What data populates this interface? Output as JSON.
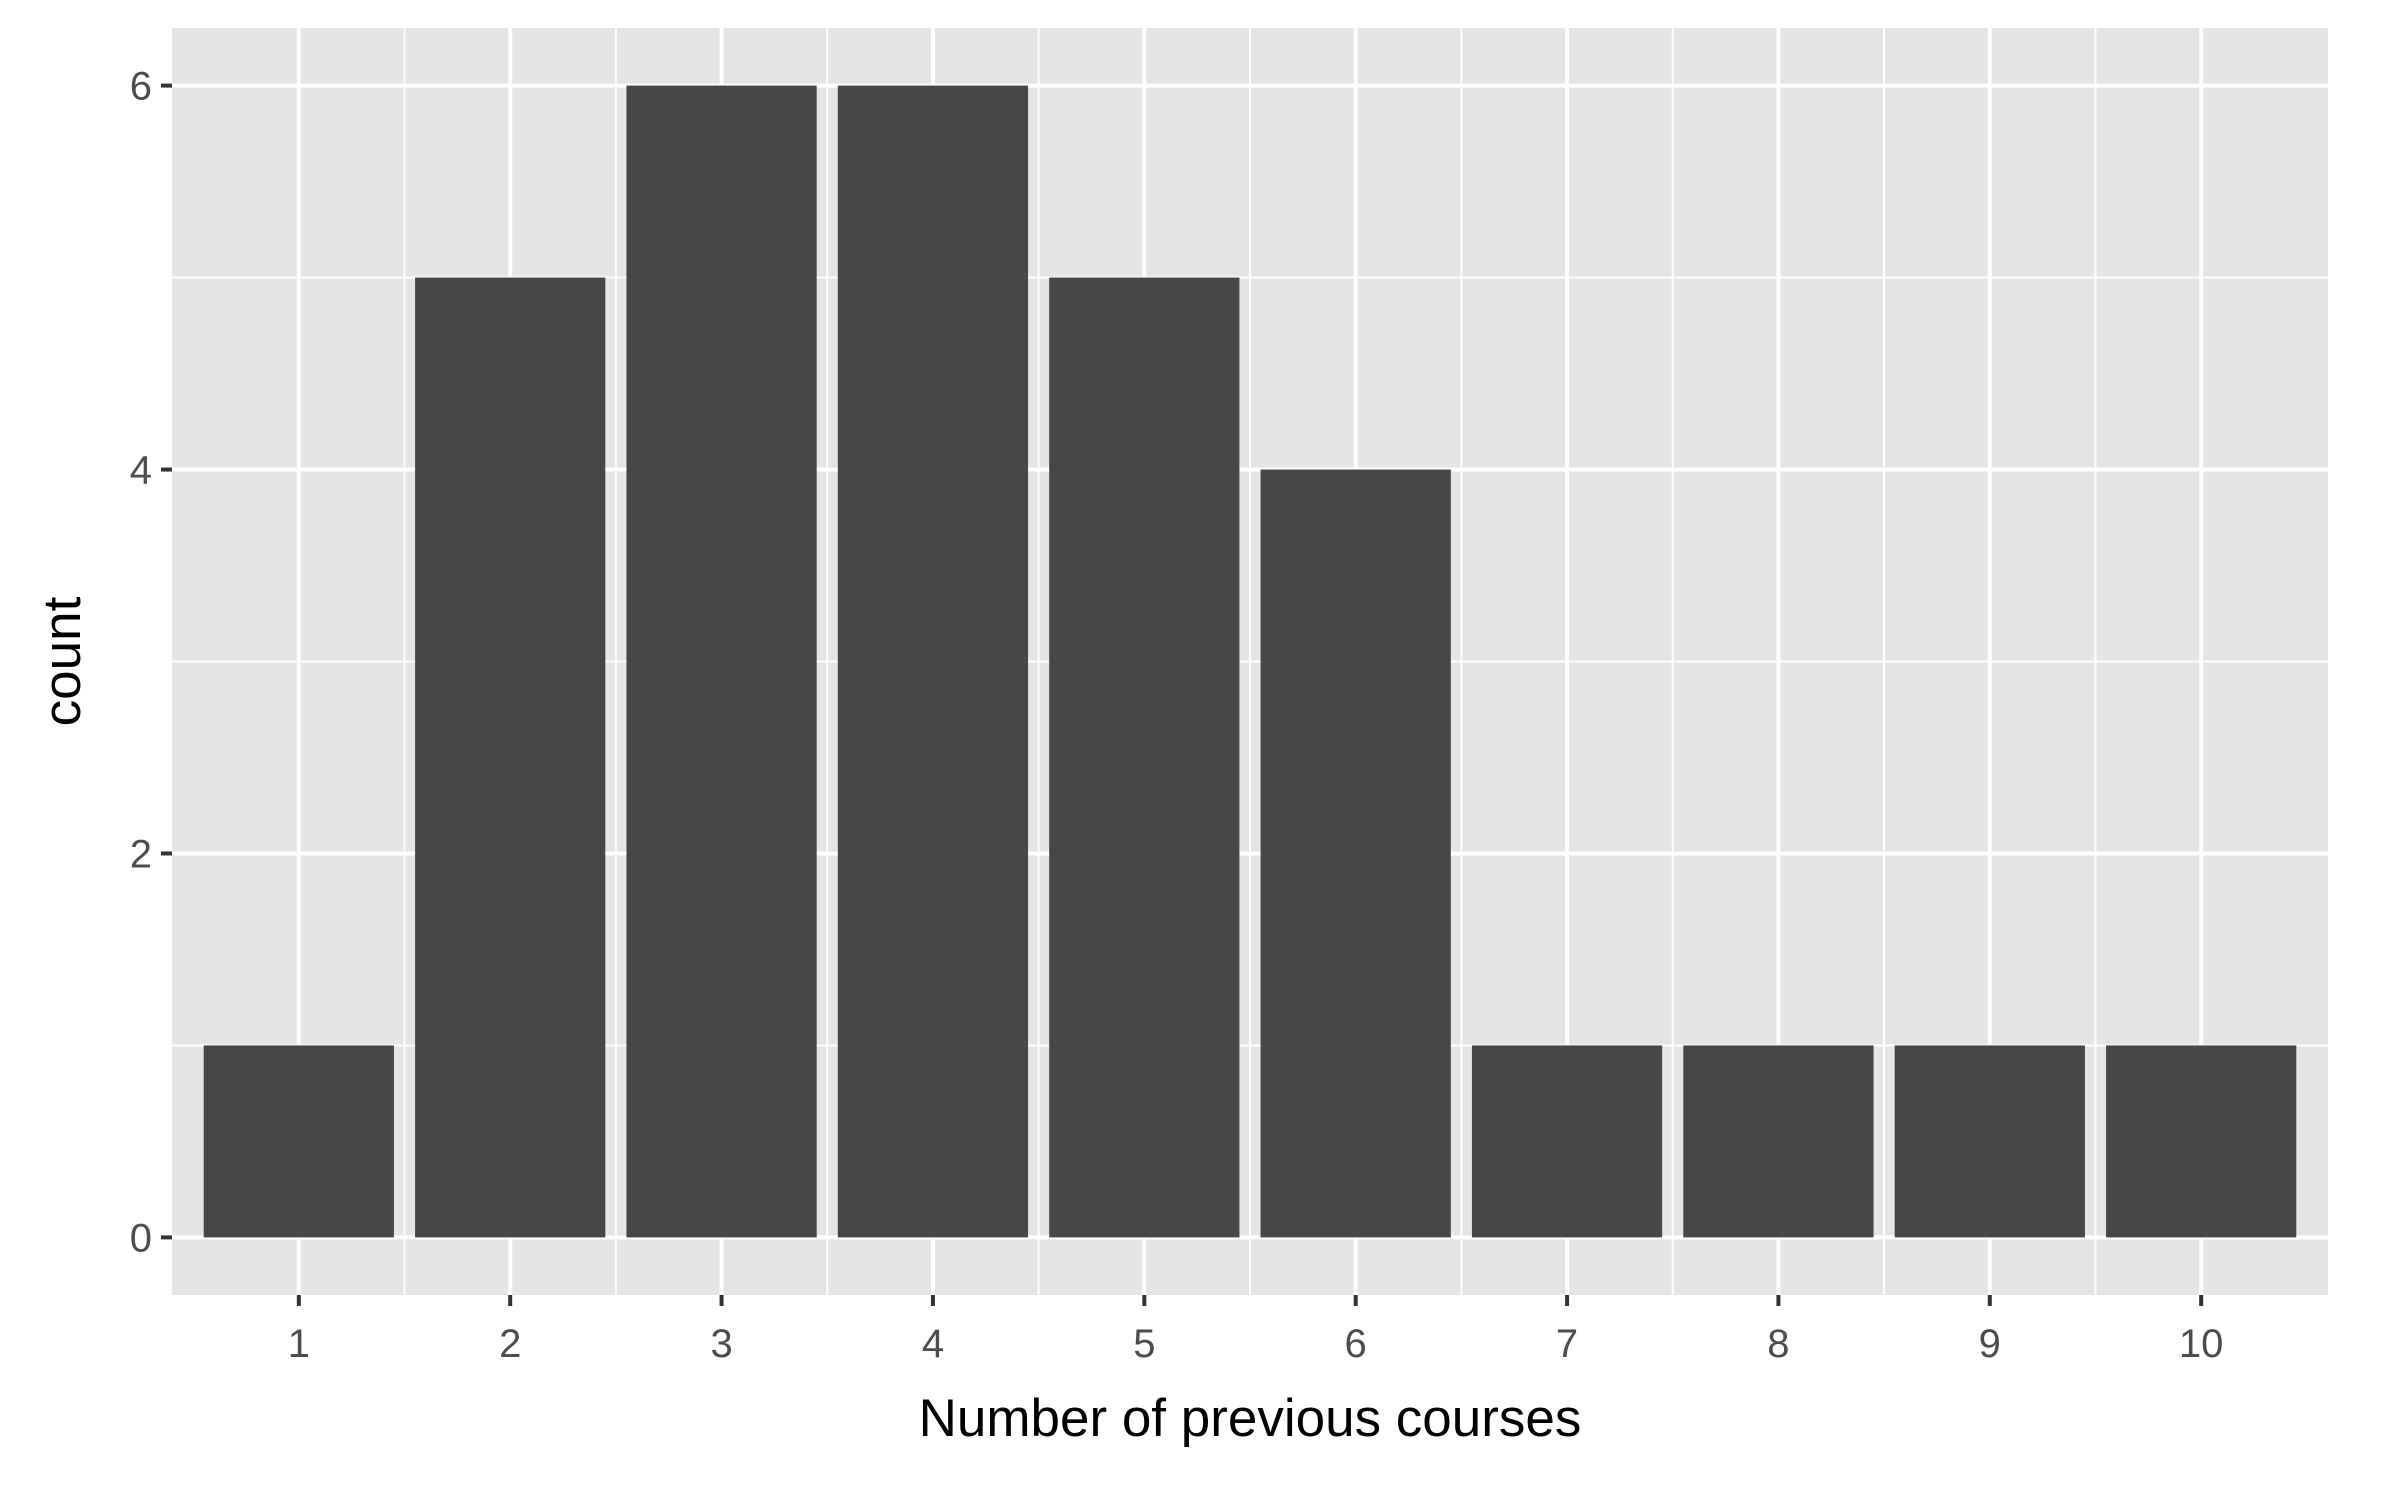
{
  "chart_data": {
    "type": "bar",
    "categories": [
      "1",
      "2",
      "3",
      "4",
      "5",
      "6",
      "7",
      "8",
      "9",
      "10"
    ],
    "values": [
      1,
      5,
      6,
      6,
      5,
      4,
      1,
      1,
      1,
      1
    ],
    "xlabel": "Number of previous courses",
    "ylabel": "count",
    "ylim": [
      -0.3,
      6.3
    ],
    "yticks": [
      0,
      2,
      4,
      6
    ],
    "grid": true,
    "bar_color": "#474747",
    "panel_background": "#e5e5e5",
    "grid_color": "#ffffff"
  }
}
